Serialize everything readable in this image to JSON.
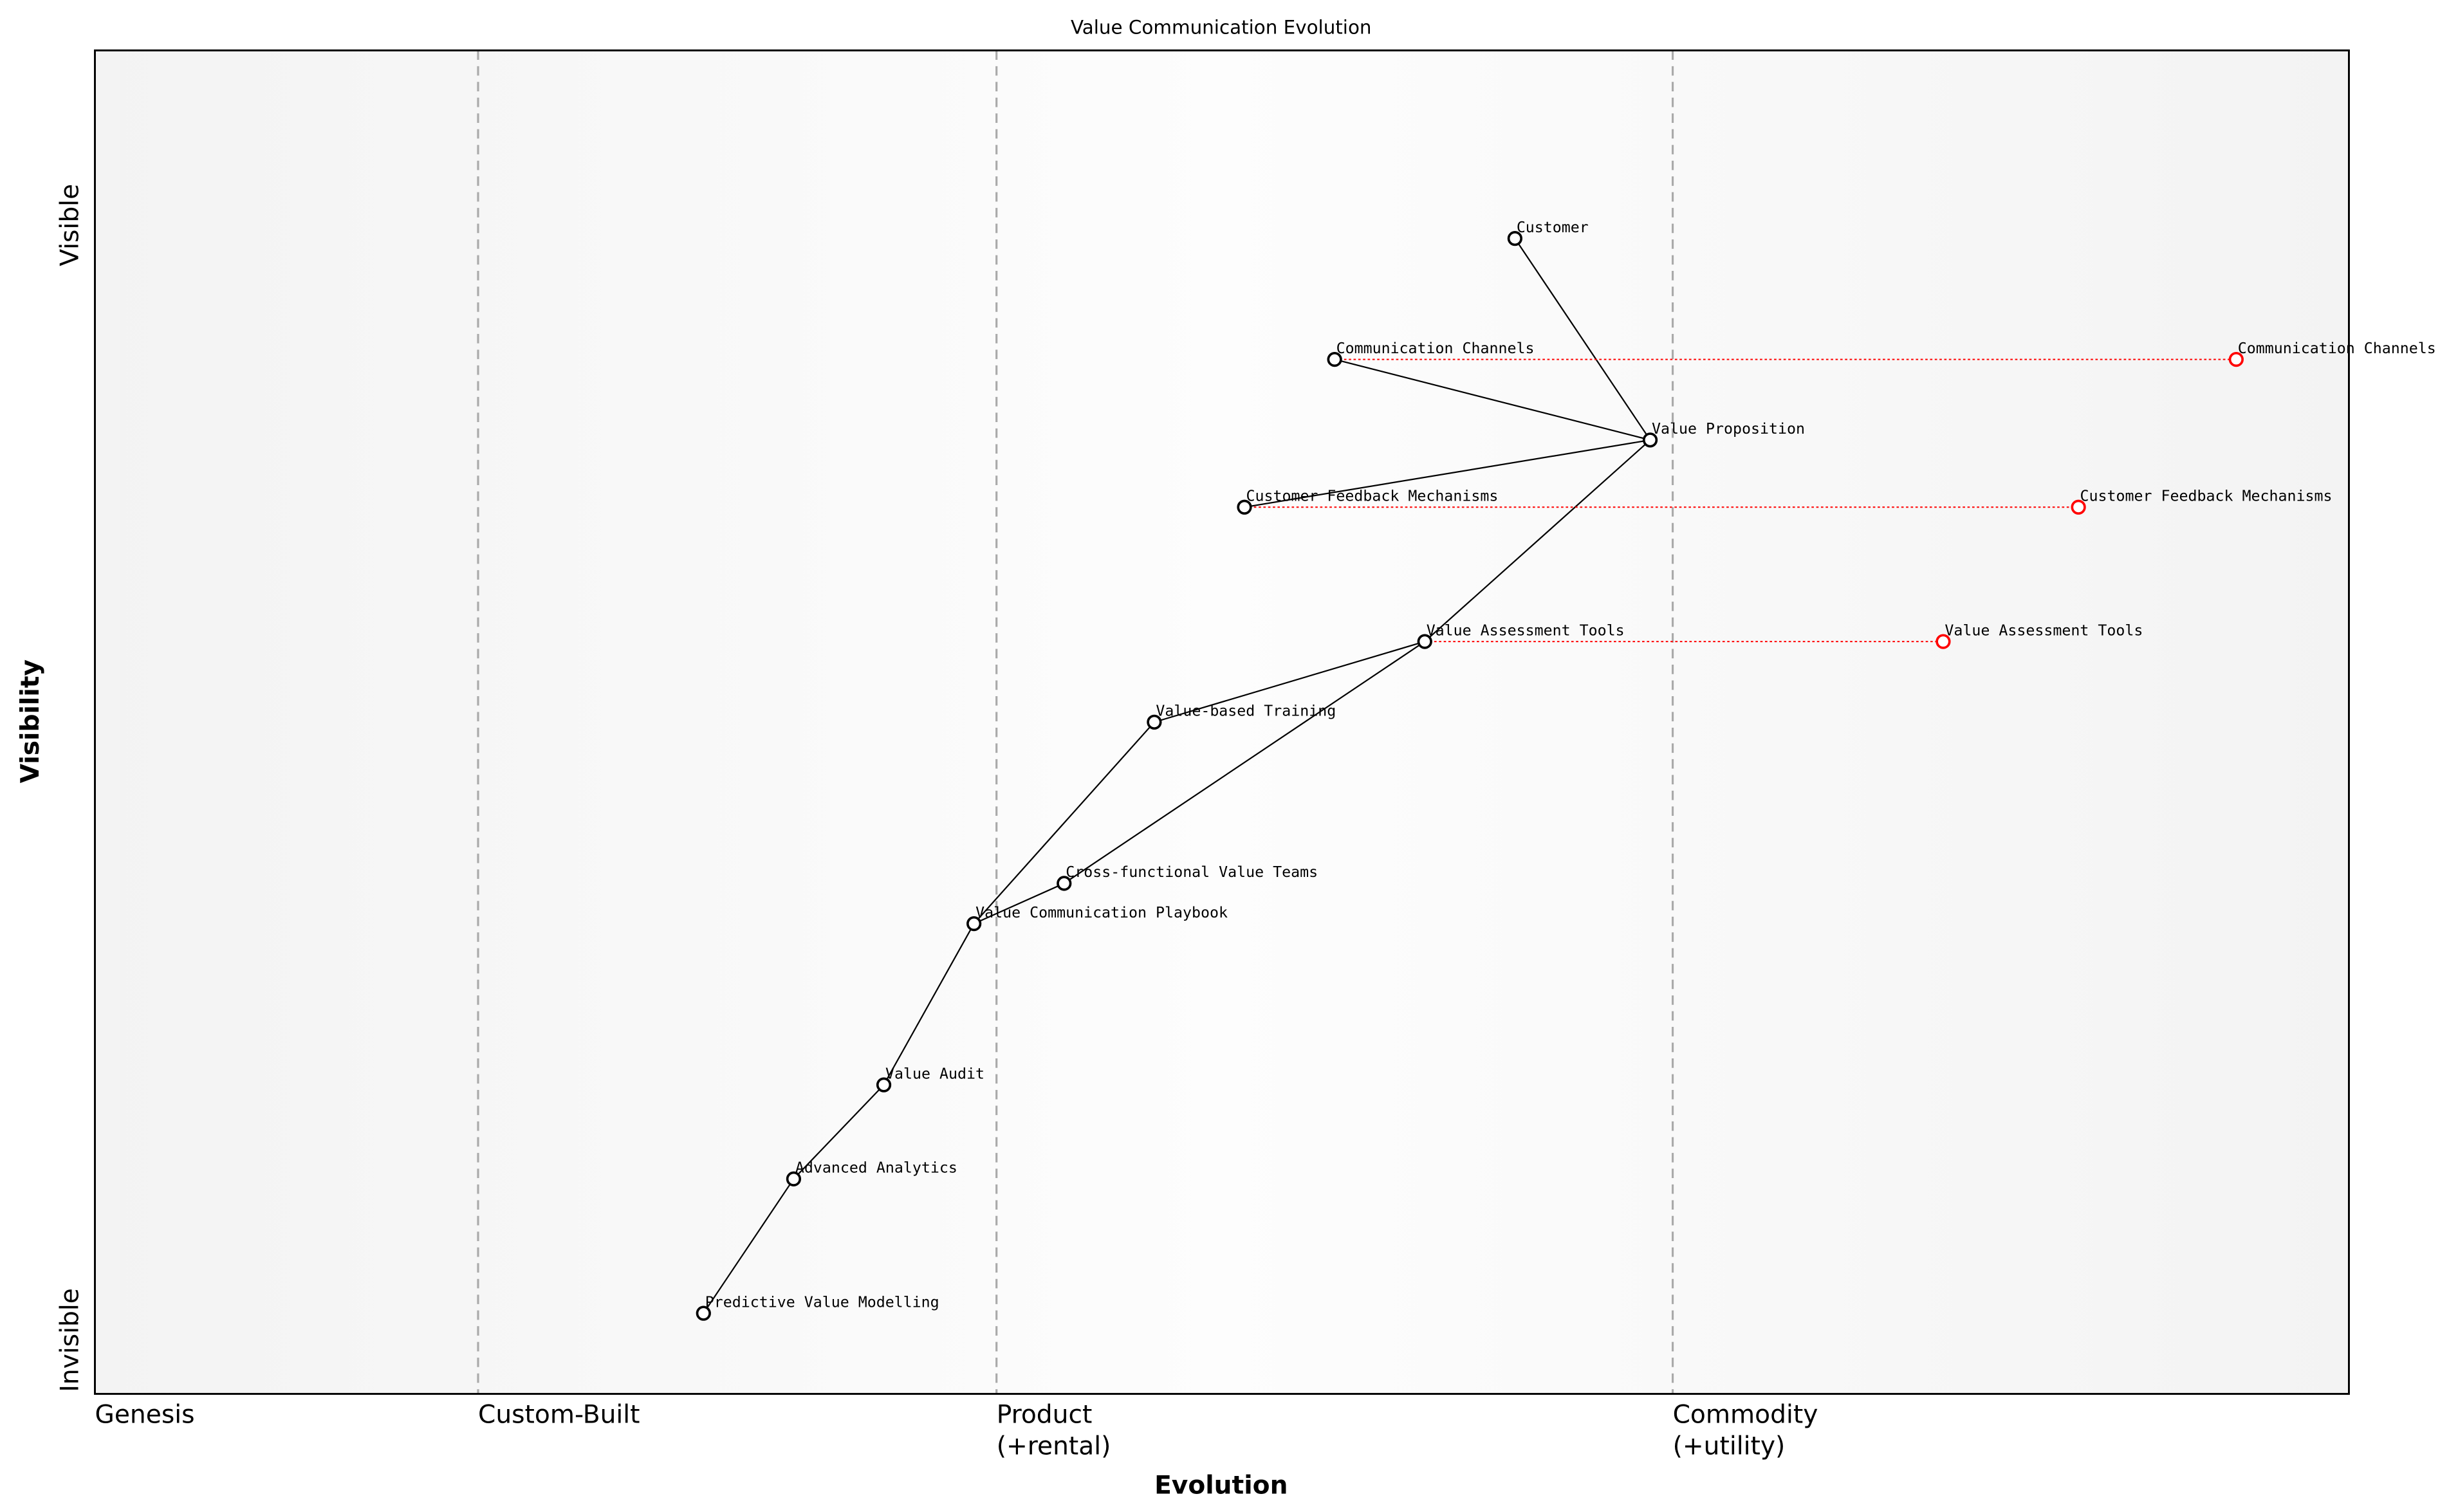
{
  "chart_data": {
    "type": "wardley",
    "title": "Value Communication Evolution",
    "xlabel": "Evolution",
    "ylabel": "Visibility",
    "xlim": [
      0,
      1
    ],
    "ylim": [
      0,
      1
    ],
    "xticks": [
      {
        "value": 0,
        "label": "Genesis"
      },
      {
        "value": 0.17,
        "label": "Custom-Built"
      },
      {
        "value": 0.4,
        "label": "Product\n(+rental)"
      },
      {
        "value": 0.7,
        "label": "Commodity\n(+utility)"
      }
    ],
    "yticks": [
      {
        "value": 0.04,
        "label": "Invisible"
      },
      {
        "value": 0.87,
        "label": "Visible"
      }
    ],
    "nodes": [
      {
        "name": "Customer",
        "x": 0.63,
        "y": 0.86
      },
      {
        "name": "Communication Channels",
        "x": 0.55,
        "y": 0.77
      },
      {
        "name": "Value Proposition",
        "x": 0.69,
        "y": 0.71
      },
      {
        "name": "Customer Feedback Mechanisms",
        "x": 0.51,
        "y": 0.66
      },
      {
        "name": "Value Assessment Tools",
        "x": 0.59,
        "y": 0.56
      },
      {
        "name": "Value-based Training",
        "x": 0.47,
        "y": 0.5
      },
      {
        "name": "Cross-functional Value Teams",
        "x": 0.43,
        "y": 0.38
      },
      {
        "name": "Value Communication Playbook",
        "x": 0.39,
        "y": 0.35
      },
      {
        "name": "Value Audit",
        "x": 0.35,
        "y": 0.23
      },
      {
        "name": "Advanced Analytics",
        "x": 0.31,
        "y": 0.16
      },
      {
        "name": "Predictive Value Modelling",
        "x": 0.27,
        "y": 0.06
      }
    ],
    "links": [
      [
        "Customer",
        "Value Proposition"
      ],
      [
        "Value Proposition",
        "Communication Channels"
      ],
      [
        "Value Proposition",
        "Customer Feedback Mechanisms"
      ],
      [
        "Value Proposition",
        "Value Assessment Tools"
      ],
      [
        "Value Assessment Tools",
        "Value-based Training"
      ],
      [
        "Value Assessment Tools",
        "Cross-functional Value Teams"
      ],
      [
        "Value-based Training",
        "Value Communication Playbook"
      ],
      [
        "Cross-functional Value Teams",
        "Value Communication Playbook"
      ],
      [
        "Value Communication Playbook",
        "Value Audit"
      ],
      [
        "Value Audit",
        "Advanced Analytics"
      ],
      [
        "Advanced Analytics",
        "Predictive Value Modelling"
      ]
    ],
    "evolutions": [
      {
        "name": "Communication Channels",
        "x": 0.95
      },
      {
        "name": "Customer Feedback Mechanisms",
        "x": 0.88
      },
      {
        "name": "Value Assessment Tools",
        "x": 0.82
      }
    ],
    "evolution_color": "#ff0000",
    "node_color": "#000000"
  }
}
